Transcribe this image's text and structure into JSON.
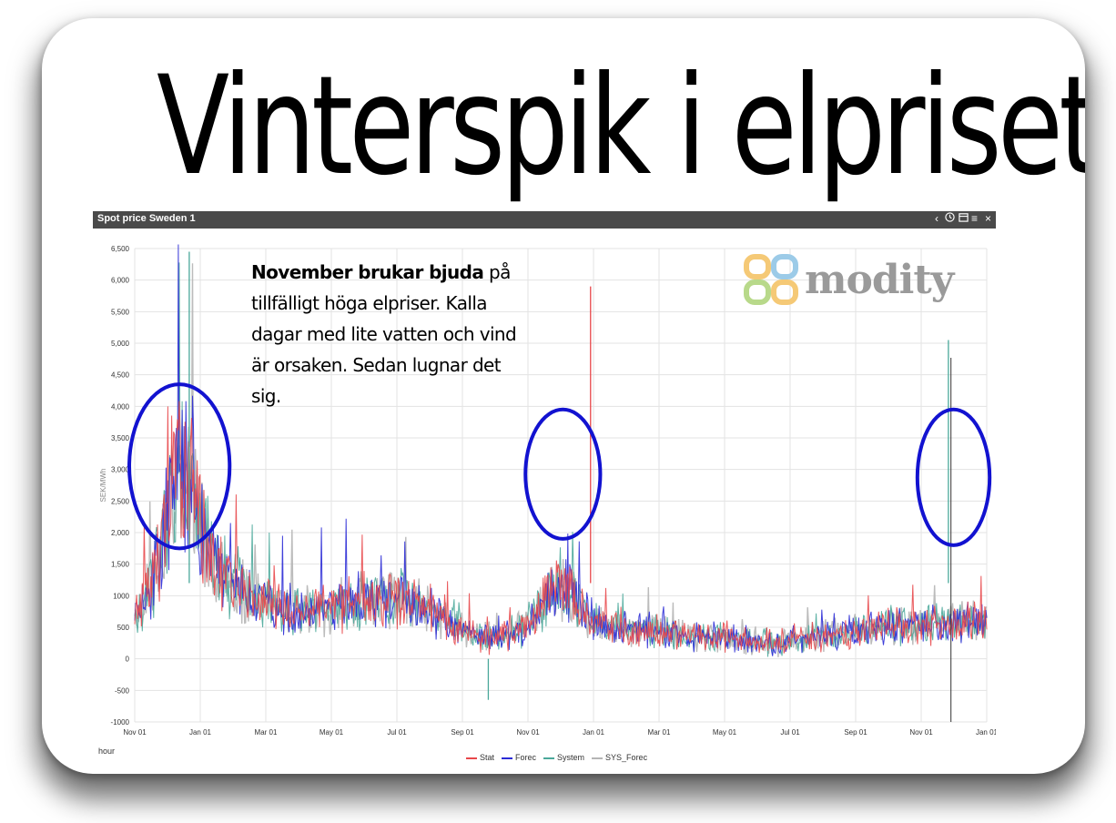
{
  "headline": "Vinterspik i elpriset",
  "panel": {
    "title": "Spot price Sweden 1",
    "toolbar_icons": [
      "chevron-left-icon",
      "clock-icon",
      "calendar-icon",
      "menu-icon",
      "close-icon"
    ]
  },
  "annotation": {
    "lead": "November brukar bjuda",
    "rest": " på tillfälligt höga elpriser. Kalla dagar med lite vatten och vind är orsaken. Sedan lugnar det sig."
  },
  "brand": {
    "name": "modity",
    "colors": [
      "#f5c976",
      "#9ccbe8",
      "#b8d98a",
      "#f5c976"
    ]
  },
  "chart_data": {
    "type": "line",
    "title": "Spot price Sweden 1",
    "xlabel": "hour",
    "ylabel": "SEK/MWh",
    "ylim": [
      -1000,
      6500
    ],
    "yticks": [
      "6,500",
      "6,000",
      "5,500",
      "5,000",
      "4,500",
      "4,000",
      "3,500",
      "3,000",
      "2,500",
      "2,000",
      "1,500",
      "1000",
      "500",
      "0",
      "-500",
      "-1000"
    ],
    "xticks": [
      "Nov 01",
      "Jan 01",
      "Mar 01",
      "May 01",
      "Jul 01",
      "Sep 01",
      "Nov 01",
      "Jan 01",
      "Mar 01",
      "May 01",
      "Jul 01",
      "Sep 01",
      "Nov 01",
      "Jan 01"
    ],
    "grid": true,
    "legend_position": "bottom",
    "series": [
      {
        "name": "Stat",
        "color": "#e8474a"
      },
      {
        "name": "Forec",
        "color": "#2b2bd6"
      },
      {
        "name": "System",
        "color": "#4aa89a"
      },
      {
        "name": "SYS_Forec",
        "color": "#b5b5b5"
      }
    ],
    "highlights": [
      {
        "from": "Nov 01",
        "to": "Jan 01",
        "ymin": 1750,
        "ymax": 4350,
        "color": "#1212d0"
      },
      {
        "from": "Nov 01",
        "to": "Jan 01",
        "ymin": 1900,
        "ymax": 3950,
        "color": "#1212d0"
      },
      {
        "from": "Nov 01",
        "to": "Jan 01",
        "ymin": 1800,
        "ymax": 3950,
        "color": "#1212d0"
      }
    ],
    "notable_points": [
      {
        "label": "first winter peak",
        "y": 6450
      },
      {
        "label": "second winter peak",
        "y": 5900
      },
      {
        "label": "third winter peak",
        "y": 5050
      },
      {
        "label": "summer low",
        "y": -650
      }
    ]
  }
}
